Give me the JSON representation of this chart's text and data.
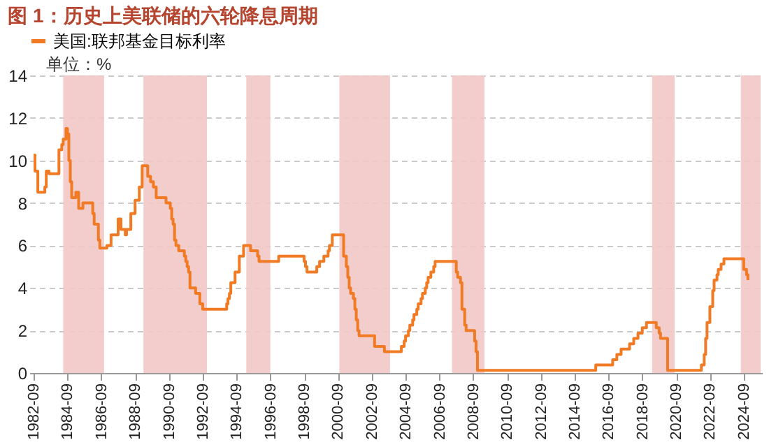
{
  "chart_data": {
    "type": "step",
    "title": "图 1：历史上美联储的六轮降息周期",
    "annotations": [
      "单位：%"
    ],
    "x": [
      "1982-09",
      "1982-10",
      "1982-12",
      "1983-05",
      "1983-06",
      "1983-08",
      "1984-03",
      "1984-05",
      "1984-06",
      "1984-08",
      "1984-09",
      "1984-10",
      "1984-11",
      "1984-12",
      "1985-03",
      "1985-05",
      "1985-08",
      "1986-03",
      "1986-04",
      "1986-07",
      "1986-08",
      "1987-01",
      "1987-04",
      "1987-09",
      "1987-11",
      "1988-02",
      "1988-03",
      "1988-06",
      "1988-09",
      "1988-12",
      "1989-02",
      "1989-06",
      "1989-08",
      "1989-10",
      "1989-12",
      "1990-07",
      "1990-10",
      "1990-11",
      "1990-12",
      "1991-01",
      "1991-02",
      "1991-04",
      "1991-08",
      "1991-09",
      "1991-10",
      "1991-11",
      "1991-12",
      "1992-04",
      "1992-07",
      "1992-09",
      "1994-02",
      "1994-03",
      "1994-04",
      "1994-05",
      "1994-08",
      "1994-11",
      "1995-02",
      "1995-07",
      "1995-12",
      "1996-01",
      "1997-03",
      "1998-09",
      "1998-10",
      "1998-11",
      "1999-06",
      "1999-08",
      "1999-11",
      "2000-02",
      "2000-03",
      "2000-05",
      "2001-01",
      "2001-03",
      "2001-04",
      "2001-05",
      "2001-06",
      "2001-08",
      "2001-09",
      "2001-10",
      "2001-11",
      "2001-12",
      "2002-11",
      "2003-06",
      "2004-06",
      "2004-08",
      "2004-09",
      "2004-11",
      "2004-12",
      "2005-02",
      "2005-03",
      "2005-05",
      "2005-06",
      "2005-08",
      "2005-09",
      "2005-11",
      "2005-12",
      "2006-01",
      "2006-03",
      "2006-05",
      "2006-06",
      "2007-09",
      "2007-10",
      "2007-12",
      "2008-01",
      "2008-03",
      "2008-04",
      "2008-10",
      "2008-11",
      "2008-12",
      "2015-12",
      "2016-12",
      "2017-03",
      "2017-06",
      "2017-12",
      "2018-03",
      "2018-06",
      "2018-09",
      "2018-12",
      "2019-07",
      "2019-09",
      "2019-10",
      "2020-03",
      "2022-03",
      "2022-05",
      "2022-06",
      "2022-07",
      "2022-09",
      "2022-11",
      "2022-12",
      "2023-02",
      "2023-03",
      "2023-05",
      "2023-07",
      "2024-09",
      "2024-11",
      "2024-12"
    ],
    "series": [
      {
        "name": "美国:联邦基金目标利率",
        "color": "#f07b24",
        "values": [
          10.25,
          9.5,
          8.5,
          8.75,
          9.5,
          9.375,
          10.5,
          10.75,
          11.0,
          11.5,
          11.25,
          10.0,
          9.0,
          8.25,
          8.5,
          7.75,
          8.0,
          7.5,
          7.0,
          6.25,
          5.875,
          6.0,
          6.5,
          7.25,
          6.75,
          6.5,
          6.75,
          7.5,
          8.125,
          8.75,
          9.75,
          9.25,
          9.0,
          8.75,
          8.25,
          8.0,
          7.75,
          7.25,
          7.0,
          6.25,
          6.0,
          5.75,
          5.5,
          5.25,
          5.0,
          4.75,
          4.0,
          3.75,
          3.25,
          3.0,
          3.25,
          3.5,
          3.75,
          4.25,
          4.75,
          5.5,
          6.0,
          5.75,
          5.5,
          5.25,
          5.5,
          5.25,
          5.0,
          4.75,
          5.0,
          5.25,
          5.5,
          5.75,
          6.0,
          6.5,
          5.5,
          5.0,
          4.5,
          4.0,
          3.75,
          3.5,
          3.0,
          2.5,
          2.0,
          1.75,
          1.25,
          1.0,
          1.25,
          1.5,
          1.75,
          2.0,
          2.25,
          2.5,
          2.75,
          3.0,
          3.25,
          3.5,
          3.75,
          4.0,
          4.25,
          4.5,
          4.75,
          5.0,
          5.25,
          4.75,
          4.5,
          4.25,
          3.0,
          2.25,
          2.0,
          1.5,
          1.0,
          0.125,
          0.375,
          0.625,
          0.875,
          1.125,
          1.375,
          1.625,
          1.875,
          2.125,
          2.375,
          2.125,
          1.875,
          1.625,
          0.125,
          0.375,
          0.875,
          1.625,
          2.375,
          3.125,
          3.875,
          4.375,
          4.625,
          4.875,
          5.125,
          5.375,
          4.875,
          4.625,
          4.375
        ]
      }
    ],
    "bands": [
      {
        "axis": "x",
        "from": "1984-06",
        "to": "1986-11",
        "color": "#f2c6c6"
      },
      {
        "axis": "x",
        "from": "1989-03",
        "to": "1992-12",
        "color": "#f2c6c6"
      },
      {
        "axis": "x",
        "from": "1995-04",
        "to": "1996-09",
        "color": "#f2c6c6"
      },
      {
        "axis": "x",
        "from": "2000-10",
        "to": "2003-10",
        "color": "#f2c6c6"
      },
      {
        "axis": "x",
        "from": "2007-06",
        "to": "2009-05",
        "color": "#f2c6c6"
      },
      {
        "axis": "x",
        "from": "2019-04",
        "to": "2020-08",
        "color": "#f2c6c6"
      },
      {
        "axis": "x",
        "from": "2024-07",
        "to": "2025-09",
        "color": "#f2c6c6"
      }
    ],
    "xlim": [
      "1982-06",
      "2025-10"
    ],
    "xticks": [
      "1982-09",
      "1984-09",
      "1986-09",
      "1988-09",
      "1990-09",
      "1992-09",
      "1994-09",
      "1996-09",
      "1998-09",
      "2000-09",
      "2002-09",
      "2004-09",
      "2006-09",
      "2008-09",
      "2010-09",
      "2012-09",
      "2014-09",
      "2016-09",
      "2018-09",
      "2020-09",
      "2022-09",
      "2024-09"
    ],
    "ylim": [
      0,
      14
    ],
    "yticks": [
      0,
      2,
      4,
      6,
      8,
      10,
      12,
      14
    ],
    "grid": "y",
    "legend": "top"
  }
}
